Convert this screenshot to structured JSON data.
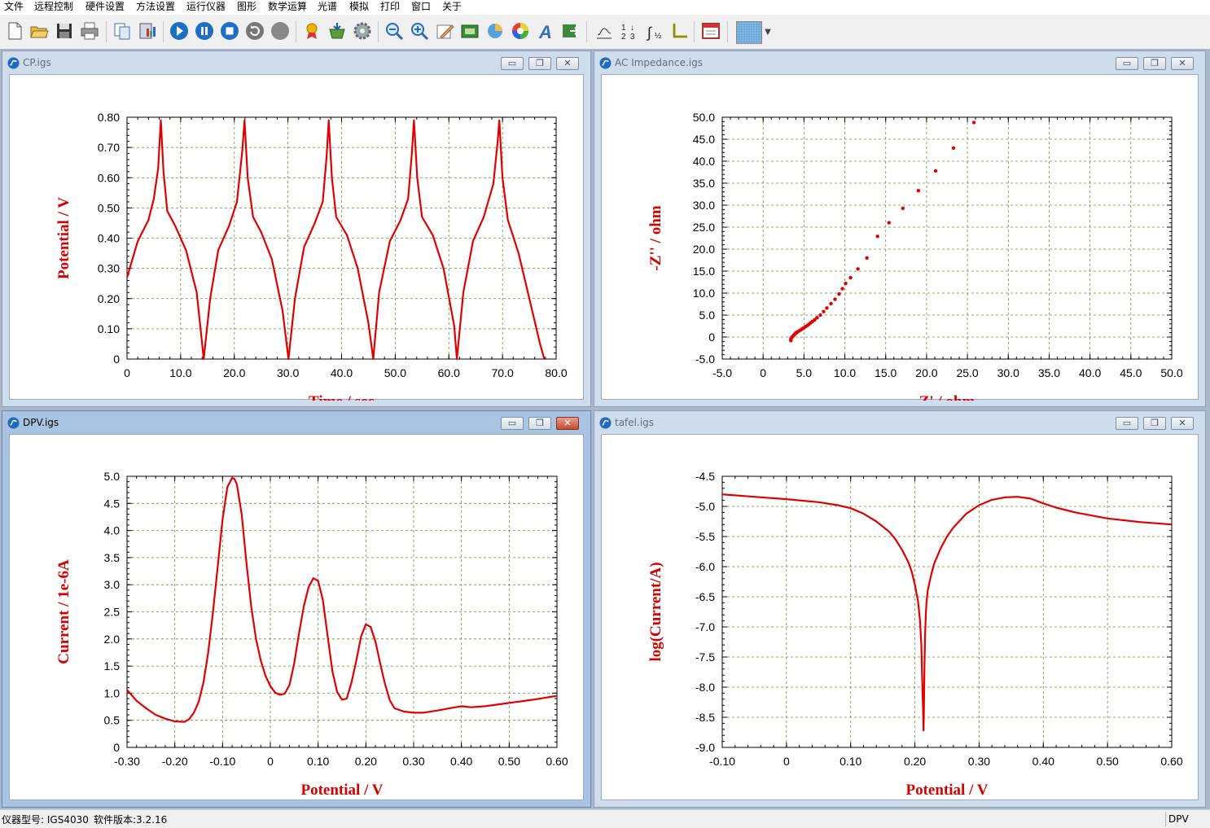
{
  "menu": [
    "文件",
    "远程控制",
    "硬件设置",
    "方法设置",
    "运行仪器",
    "图形",
    "数学运算",
    "光谱",
    "模拟",
    "打印",
    "窗口",
    "关于"
  ],
  "toolbar_icons": [
    "new-file-icon",
    "open-folder-icon",
    "save-icon",
    "print-icon",
    "copy-icon",
    "paste-chart-icon",
    "run-icon",
    "pause-icon",
    "stop-icon",
    "repeat-icon",
    "record-icon",
    "award-icon",
    "basket-icon",
    "settings-gear-icon",
    "zoom-out-icon",
    "zoom-in-icon",
    "edit-icon",
    "chart-image-icon",
    "pie-icon",
    "color-wheel-icon",
    "text-font-icon",
    "export-icon",
    "smooth-icon",
    "sort-icon",
    "integrate-icon",
    "axis-icon",
    "calendar-icon",
    "color-swatch-icon"
  ],
  "colors": {
    "curve": "#e00000",
    "label": "#d40000",
    "grid": "#6b8c3b"
  },
  "windows": [
    {
      "id": "cp",
      "title": "CP.igs",
      "active": false,
      "chart_data": {
        "type": "line",
        "xlabel": "Time / sec",
        "ylabel": "Potential / V",
        "xlim": [
          0,
          80
        ],
        "ylim": [
          0,
          0.8
        ],
        "xticks": [
          "0",
          "10.0",
          "20.0",
          "30.0",
          "40.0",
          "50.0",
          "60.0",
          "70.0",
          "80.0"
        ],
        "yticks": [
          "0",
          "0.10",
          "0.20",
          "0.30",
          "0.40",
          "0.50",
          "0.60",
          "0.70",
          "0.80"
        ],
        "grid": true,
        "x": [
          0,
          2,
          4,
          5,
          5.8,
          6.3,
          6.8,
          7.5,
          9,
          11,
          13,
          14.3,
          15.5,
          17,
          19,
          20.5,
          21.5,
          21.9,
          22.5,
          23.5,
          25,
          27,
          29,
          30.1,
          31.3,
          33,
          35,
          36.5,
          37.2,
          37.6,
          38.2,
          39,
          41,
          43,
          45,
          45.9,
          47,
          49,
          51,
          52.4,
          53.1,
          53.5,
          54.1,
          55,
          57,
          59,
          61,
          61.5,
          62.7,
          64.5,
          66.5,
          68.3,
          69.1,
          69.4,
          70,
          71,
          73,
          75,
          77,
          77.8
        ],
        "y": [
          0.27,
          0.39,
          0.46,
          0.53,
          0.63,
          0.79,
          0.62,
          0.49,
          0.44,
          0.36,
          0.22,
          0.0,
          0.2,
          0.36,
          0.44,
          0.52,
          0.69,
          0.79,
          0.6,
          0.47,
          0.42,
          0.33,
          0.16,
          0.0,
          0.2,
          0.37,
          0.45,
          0.52,
          0.67,
          0.79,
          0.6,
          0.47,
          0.41,
          0.3,
          0.12,
          0.0,
          0.22,
          0.39,
          0.46,
          0.53,
          0.68,
          0.79,
          0.6,
          0.47,
          0.41,
          0.3,
          0.11,
          0.0,
          0.22,
          0.39,
          0.47,
          0.58,
          0.72,
          0.79,
          0.6,
          0.46,
          0.35,
          0.2,
          0.05,
          0.0
        ]
      }
    },
    {
      "id": "ac",
      "title": "AC Impedance.igs",
      "active": false,
      "chart_data": {
        "type": "scatter",
        "xlabel": "Z' / ohm",
        "ylabel": "-Z'' / ohm",
        "xlim": [
          -5,
          50
        ],
        "ylim": [
          -5,
          50
        ],
        "xticks": [
          "-5.0",
          "0",
          "5.0",
          "10.0",
          "15.0",
          "20.0",
          "25.0",
          "30.0",
          "35.0",
          "40.0",
          "45.0",
          "50.0"
        ],
        "yticks": [
          "-5.0",
          "0",
          "5.0",
          "10.0",
          "15.0",
          "20.0",
          "25.0",
          "30.0",
          "35.0",
          "40.0",
          "45.0",
          "50.0"
        ],
        "grid": true,
        "x": [
          3.4,
          3.4,
          3.5,
          3.6,
          3.7,
          3.8,
          3.9,
          4.0,
          4.1,
          4.2,
          4.4,
          4.6,
          4.8,
          5.0,
          5.2,
          5.4,
          5.6,
          5.8,
          6.0,
          6.3,
          6.6,
          7.0,
          7.4,
          7.8,
          8.3,
          8.8,
          9.3,
          9.7,
          10.1,
          10.7,
          11.6,
          12.7,
          14.0,
          15.4,
          17.1,
          19.0,
          21.1,
          23.3,
          25.8
        ],
        "y": [
          -0.8,
          -0.4,
          -0.1,
          0.1,
          0.3,
          0.5,
          0.7,
          0.9,
          1.0,
          1.2,
          1.4,
          1.6,
          1.9,
          2.1,
          2.4,
          2.6,
          2.9,
          3.2,
          3.5,
          3.9,
          4.4,
          5.0,
          5.8,
          6.6,
          7.6,
          8.6,
          9.8,
          11.0,
          12.2,
          13.5,
          15.5,
          18.0,
          22.9,
          26.0,
          29.3,
          33.3,
          37.8,
          43.0,
          48.8
        ]
      }
    },
    {
      "id": "dpv",
      "title": "DPV.igs",
      "active": true,
      "chart_data": {
        "type": "line",
        "xlabel": "Potential / V",
        "ylabel": "Current / 1e-6A",
        "xlim": [
          -0.3,
          0.6
        ],
        "ylim": [
          0,
          5
        ],
        "xticks": [
          "-0.30",
          "-0.20",
          "-0.10",
          "0",
          "0.10",
          "0.20",
          "0.30",
          "0.40",
          "0.50",
          "0.60"
        ],
        "yticks": [
          "0",
          "0.5",
          "1.0",
          "1.5",
          "2.0",
          "2.5",
          "3.0",
          "3.5",
          "4.0",
          "4.5",
          "5.0"
        ],
        "grid": true,
        "x": [
          -0.3,
          -0.28,
          -0.26,
          -0.24,
          -0.22,
          -0.2,
          -0.18,
          -0.17,
          -0.16,
          -0.15,
          -0.14,
          -0.13,
          -0.12,
          -0.11,
          -0.1,
          -0.09,
          -0.08,
          -0.075,
          -0.07,
          -0.06,
          -0.05,
          -0.04,
          -0.03,
          -0.02,
          -0.01,
          0.0,
          0.01,
          0.02,
          0.03,
          0.04,
          0.05,
          0.06,
          0.07,
          0.08,
          0.09,
          0.1,
          0.11,
          0.12,
          0.13,
          0.14,
          0.15,
          0.16,
          0.17,
          0.18,
          0.19,
          0.2,
          0.21,
          0.22,
          0.23,
          0.24,
          0.25,
          0.26,
          0.28,
          0.3,
          0.32,
          0.35,
          0.38,
          0.4,
          0.42,
          0.45,
          0.5,
          0.55,
          0.6
        ],
        "y": [
          1.06,
          0.86,
          0.72,
          0.6,
          0.53,
          0.48,
          0.47,
          0.52,
          0.64,
          0.84,
          1.2,
          1.75,
          2.5,
          3.35,
          4.2,
          4.8,
          4.97,
          4.95,
          4.85,
          4.3,
          3.4,
          2.6,
          2.0,
          1.6,
          1.32,
          1.13,
          1.01,
          0.97,
          0.99,
          1.15,
          1.55,
          2.1,
          2.6,
          2.95,
          3.12,
          3.07,
          2.72,
          2.05,
          1.4,
          1.02,
          0.88,
          0.9,
          1.2,
          1.6,
          2.05,
          2.27,
          2.22,
          1.95,
          1.55,
          1.17,
          0.87,
          0.72,
          0.66,
          0.64,
          0.64,
          0.68,
          0.73,
          0.76,
          0.74,
          0.76,
          0.82,
          0.88,
          0.95
        ]
      }
    },
    {
      "id": "tafel",
      "title": "tafel.igs",
      "active": false,
      "chart_data": {
        "type": "line",
        "xlabel": "Potential / V",
        "ylabel": "log(Current/A)",
        "xlim": [
          -0.1,
          0.6
        ],
        "ylim": [
          -9,
          -4.5
        ],
        "xticks": [
          "-0.10",
          "0",
          "0.10",
          "0.20",
          "0.30",
          "0.40",
          "0.50",
          "0.60"
        ],
        "yticks": [
          "-9.0",
          "-8.5",
          "-8.0",
          "-7.5",
          "-7.0",
          "-6.5",
          "-6.0",
          "-5.5",
          "-5.0",
          "-4.5"
        ],
        "grid": true,
        "x": [
          -0.1,
          -0.05,
          0.0,
          0.05,
          0.08,
          0.1,
          0.12,
          0.14,
          0.16,
          0.17,
          0.18,
          0.19,
          0.195,
          0.2,
          0.205,
          0.208,
          0.21,
          0.211,
          0.212,
          0.213,
          0.2135,
          0.214,
          0.2145,
          0.215,
          0.216,
          0.217,
          0.218,
          0.22,
          0.225,
          0.23,
          0.24,
          0.25,
          0.26,
          0.28,
          0.3,
          0.32,
          0.34,
          0.36,
          0.38,
          0.4,
          0.42,
          0.45,
          0.5,
          0.55,
          0.6
        ],
        "y": [
          -4.8,
          -4.84,
          -4.88,
          -4.93,
          -4.98,
          -5.03,
          -5.12,
          -5.25,
          -5.42,
          -5.55,
          -5.72,
          -5.93,
          -6.08,
          -6.3,
          -6.58,
          -6.9,
          -7.3,
          -7.7,
          -8.1,
          -8.45,
          -8.72,
          -8.45,
          -8.0,
          -7.6,
          -7.1,
          -6.8,
          -6.6,
          -6.4,
          -6.15,
          -5.95,
          -5.7,
          -5.5,
          -5.35,
          -5.12,
          -4.98,
          -4.89,
          -4.85,
          -4.84,
          -4.87,
          -4.95,
          -5.02,
          -5.1,
          -5.2,
          -5.26,
          -5.3
        ]
      }
    }
  ],
  "status": {
    "model": "仪器型号: IGS4030",
    "version": "软件版本:3.2.16",
    "mode": "DPV"
  }
}
